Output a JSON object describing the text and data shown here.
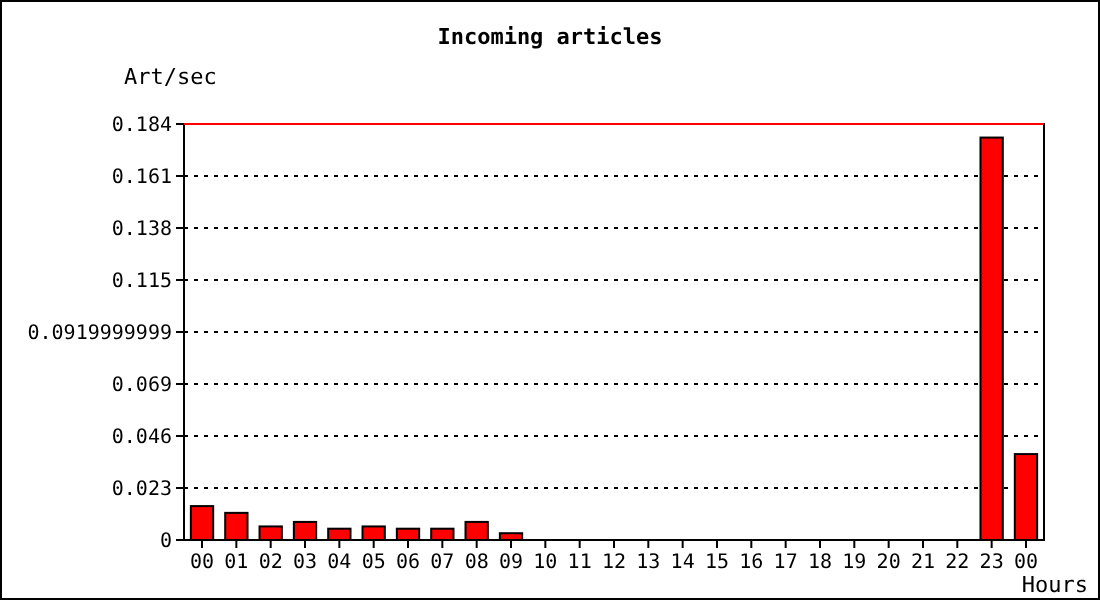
{
  "chart_data": {
    "type": "bar",
    "title": "Incoming articles",
    "ylabel": "Art/sec",
    "xlabel": "Hours",
    "categories": [
      "00",
      "01",
      "02",
      "03",
      "04",
      "05",
      "06",
      "07",
      "08",
      "09",
      "10",
      "11",
      "12",
      "13",
      "14",
      "15",
      "16",
      "17",
      "18",
      "19",
      "20",
      "21",
      "22",
      "23",
      "00"
    ],
    "values": [
      0.015,
      0.012,
      0.006,
      0.008,
      0.005,
      0.006,
      0.005,
      0.005,
      0.008,
      0.003,
      0,
      0,
      0,
      0,
      0,
      0,
      0,
      0,
      0,
      0,
      0,
      0,
      0,
      0.178,
      0.038
    ],
    "color": "#ff0000",
    "ylim": [
      0,
      0.184
    ],
    "yticks": [
      0,
      0.023,
      0.046,
      0.069,
      0.0919999999,
      0.115,
      0.138,
      0.161,
      0.184
    ],
    "grid": "y",
    "ref_lines": [
      {
        "axis": "y",
        "value": 0.184,
        "color": "#ff0000"
      }
    ]
  }
}
